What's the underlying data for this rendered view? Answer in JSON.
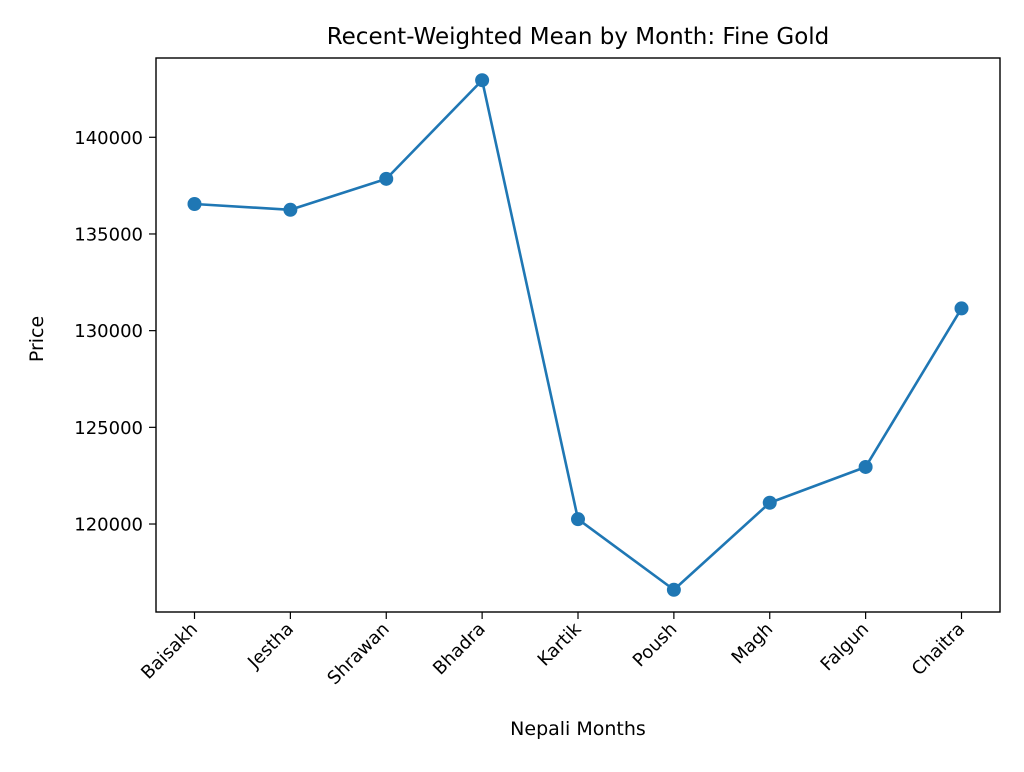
{
  "chart_data": {
    "type": "line",
    "title": "Recent-Weighted Mean by Month: Fine Gold",
    "xlabel": "Nepali Months",
    "ylabel": "Price",
    "categories": [
      "Baisakh",
      "Jestha",
      "Shrawan",
      "Bhadra",
      "Kartik",
      "Poush",
      "Magh",
      "Falgun",
      "Chaitra"
    ],
    "series": [
      {
        "values": [
          136550,
          136250,
          137850,
          142950,
          120250,
          116600,
          121100,
          122950,
          131150
        ]
      }
    ],
    "yticks": [
      120000,
      125000,
      130000,
      135000,
      140000
    ],
    "ylim": [
      115450,
      144100
    ],
    "grid": false,
    "legend": "none",
    "colors": {
      "line": "#1f77b4",
      "marker": "#1f77b4",
      "axes": "#000000"
    }
  }
}
